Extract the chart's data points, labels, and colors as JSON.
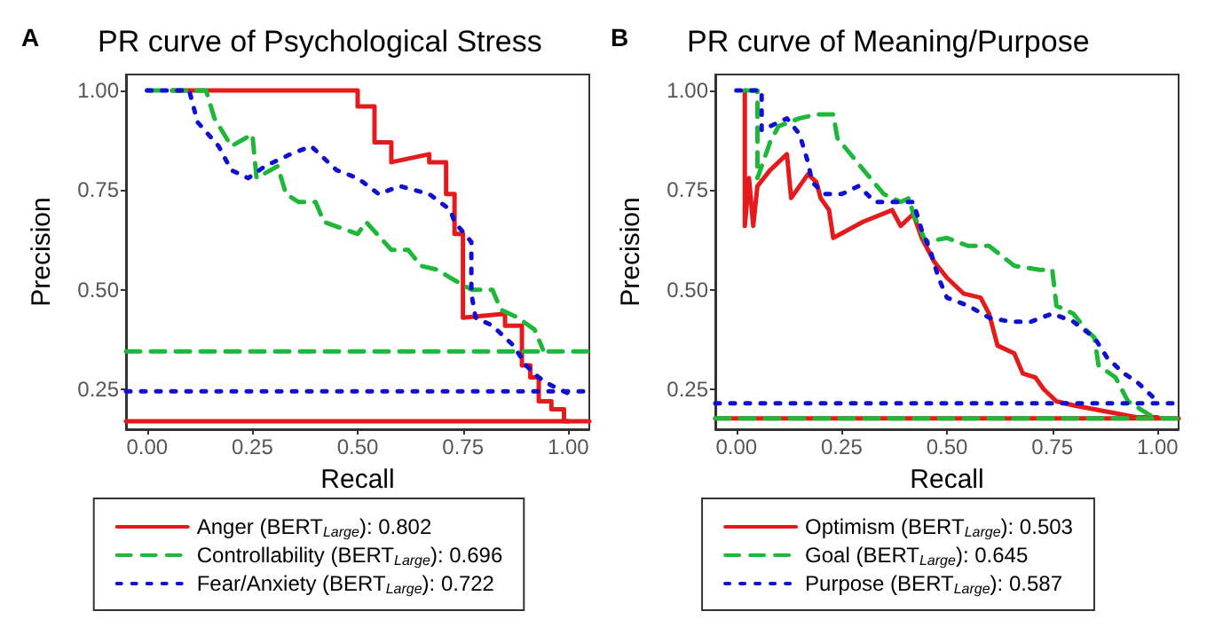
{
  "chart_data": [
    {
      "type": "line",
      "title": "PR curve of Psychological Stress",
      "xlabel": "Recall",
      "ylabel": "Precision",
      "annotations": [
        "A"
      ],
      "xlim": [
        -0.05,
        1.05
      ],
      "ylim": [
        0.15,
        1.04
      ],
      "xticks": [
        {
          "value": 0,
          "label": "0.00"
        },
        {
          "value": 0.25,
          "label": "0.25"
        },
        {
          "value": 0.5,
          "label": "0.50"
        },
        {
          "value": 0.75,
          "label": "0.75"
        },
        {
          "value": 1,
          "label": "1.00"
        }
      ],
      "yticks": [
        {
          "value": 0.25,
          "label": "0.25"
        },
        {
          "value": 0.5,
          "label": "0.50"
        },
        {
          "value": 0.75,
          "label": "0.75"
        },
        {
          "value": 1,
          "label": "1.00"
        }
      ],
      "grid": false,
      "legend": "bottom",
      "marker": "none",
      "series": [
        {
          "name": "Anger (BERT$_{Large}$): 0.802",
          "color": "#e41a1c",
          "line_style": "solid",
          "x": [
            0.06,
            0.5,
            0.5,
            0.54,
            0.54,
            0.58,
            0.58,
            0.67,
            0.67,
            0.71,
            0.71,
            0.73,
            0.73,
            0.75,
            0.75,
            0.85,
            0.85,
            0.89,
            0.89,
            0.91,
            0.91,
            0.93,
            0.93,
            0.96,
            0.96,
            0.99,
            0.99,
            1
          ],
          "values": [
            1,
            1,
            0.96,
            0.96,
            0.87,
            0.87,
            0.82,
            0.84,
            0.82,
            0.82,
            0.74,
            0.74,
            0.64,
            0.64,
            0.43,
            0.44,
            0.41,
            0.41,
            0.31,
            0.31,
            0.28,
            0.28,
            0.22,
            0.22,
            0.2,
            0.2,
            0.17,
            0.17
          ]
        },
        {
          "name": "Controllability (BERT$_{Large}$): 0.696",
          "color": "#1db83a",
          "line_style": "dashed",
          "x": [
            0,
            0.14,
            0.16,
            0.2,
            0.25,
            0.26,
            0.31,
            0.33,
            0.36,
            0.4,
            0.42,
            0.5,
            0.52,
            0.58,
            0.62,
            0.65,
            0.69,
            0.72,
            0.77,
            0.82,
            0.84,
            0.88,
            0.92,
            0.94
          ],
          "values": [
            1,
            1,
            0.93,
            0.86,
            0.89,
            0.78,
            0.81,
            0.74,
            0.72,
            0.72,
            0.67,
            0.64,
            0.67,
            0.6,
            0.6,
            0.56,
            0.55,
            0.53,
            0.5,
            0.5,
            0.45,
            0.43,
            0.4,
            0.35
          ]
        },
        {
          "name": "Fear/Anxiety (BERT$_{Large}$): 0.722",
          "color": "#1010d0",
          "line_style": "dotted",
          "x": [
            0,
            0.1,
            0.12,
            0.17,
            0.2,
            0.24,
            0.28,
            0.34,
            0.39,
            0.45,
            0.5,
            0.55,
            0.6,
            0.67,
            0.72,
            0.73,
            0.77,
            0.77,
            0.78,
            0.82,
            0.87,
            0.9,
            0.93,
            0.96,
            1
          ],
          "values": [
            1,
            1,
            0.92,
            0.86,
            0.8,
            0.78,
            0.81,
            0.84,
            0.86,
            0.8,
            0.78,
            0.74,
            0.76,
            0.74,
            0.7,
            0.67,
            0.62,
            0.49,
            0.43,
            0.41,
            0.36,
            0.31,
            0.28,
            0.26,
            0.24
          ]
        }
      ],
      "ref_lines": [
        {
          "axis": "y",
          "value": 0.17,
          "color": "#e41a1c",
          "line_style": "solid"
        },
        {
          "axis": "y",
          "value": 0.345,
          "color": "#1db83a",
          "line_style": "dashed"
        },
        {
          "axis": "y",
          "value": 0.245,
          "color": "#1010d0",
          "line_style": "dotted"
        }
      ]
    },
    {
      "type": "line",
      "title": "PR curve of Meaning/Purpose",
      "xlabel": "Recall",
      "ylabel": "Precision",
      "annotations": [
        "B"
      ],
      "xlim": [
        -0.05,
        1.05
      ],
      "ylim": [
        0.15,
        1.04
      ],
      "xticks": [
        {
          "value": 0,
          "label": "0.00"
        },
        {
          "value": 0.25,
          "label": "0.25"
        },
        {
          "value": 0.5,
          "label": "0.50"
        },
        {
          "value": 0.75,
          "label": "0.75"
        },
        {
          "value": 1,
          "label": "1.00"
        }
      ],
      "yticks": [
        {
          "value": 0.25,
          "label": "0.25"
        },
        {
          "value": 0.5,
          "label": "0.50"
        },
        {
          "value": 0.75,
          "label": "0.75"
        },
        {
          "value": 1,
          "label": "1.00"
        }
      ],
      "grid": false,
      "legend": "bottom",
      "marker": "none",
      "series": [
        {
          "name": "Optimism (BERT$_{Large}$): 0.503",
          "color": "#e41a1c",
          "line_style": "solid",
          "x": [
            0.02,
            0.02,
            0.03,
            0.04,
            0.05,
            0.08,
            0.12,
            0.13,
            0.17,
            0.19,
            0.2,
            0.22,
            0.23,
            0.3,
            0.37,
            0.39,
            0.42,
            0.44,
            0.47,
            0.5,
            0.54,
            0.58,
            0.6,
            0.62,
            0.66,
            0.68,
            0.71,
            0.73,
            0.76,
            0.8,
            0.85,
            0.9,
            0.95,
            1
          ],
          "values": [
            1,
            0.66,
            0.78,
            0.66,
            0.76,
            0.8,
            0.84,
            0.73,
            0.79,
            0.77,
            0.73,
            0.7,
            0.63,
            0.67,
            0.7,
            0.66,
            0.69,
            0.63,
            0.57,
            0.53,
            0.49,
            0.48,
            0.44,
            0.36,
            0.34,
            0.29,
            0.28,
            0.25,
            0.22,
            0.21,
            0.2,
            0.19,
            0.18,
            0.18
          ]
        },
        {
          "name": "Goal (BERT$_{Large}$): 0.645",
          "color": "#1db83a",
          "line_style": "dashed",
          "x": [
            0.02,
            0.05,
            0.05,
            0.08,
            0.1,
            0.15,
            0.19,
            0.23,
            0.24,
            0.31,
            0.35,
            0.39,
            0.41,
            0.42,
            0.45,
            0.5,
            0.55,
            0.6,
            0.66,
            0.72,
            0.75,
            0.76,
            0.8,
            0.83,
            0.85,
            0.86,
            0.9,
            0.93,
            0.96,
            0.99
          ],
          "values": [
            1,
            1,
            0.78,
            0.87,
            0.91,
            0.93,
            0.94,
            0.94,
            0.88,
            0.79,
            0.74,
            0.72,
            0.73,
            0.69,
            0.62,
            0.63,
            0.61,
            0.61,
            0.56,
            0.55,
            0.55,
            0.46,
            0.44,
            0.4,
            0.38,
            0.31,
            0.28,
            0.22,
            0.2,
            0.18
          ]
        },
        {
          "name": "Purpose (BERT$_{Large}$): 0.587",
          "color": "#1010d0",
          "line_style": "dotted",
          "x": [
            0,
            0.06,
            0.06,
            0.12,
            0.15,
            0.17,
            0.18,
            0.21,
            0.25,
            0.29,
            0.33,
            0.38,
            0.42,
            0.44,
            0.46,
            0.48,
            0.5,
            0.55,
            0.6,
            0.65,
            0.7,
            0.75,
            0.8,
            0.85,
            0.88,
            0.92,
            0.95,
            1
          ],
          "values": [
            1,
            1,
            0.9,
            0.93,
            0.89,
            0.82,
            0.77,
            0.74,
            0.74,
            0.76,
            0.72,
            0.72,
            0.72,
            0.65,
            0.6,
            0.53,
            0.48,
            0.46,
            0.43,
            0.42,
            0.42,
            0.44,
            0.42,
            0.38,
            0.33,
            0.29,
            0.27,
            0.22
          ]
        }
      ],
      "ref_lines": [
        {
          "axis": "y",
          "value": 0.215,
          "color": "#1010d0",
          "line_style": "dotted"
        },
        {
          "axis": "y",
          "value": 0.177,
          "color": "#e41a1c",
          "line_style": "solid"
        },
        {
          "axis": "y",
          "value": 0.177,
          "color": "#1db83a",
          "line_style": "dashed"
        }
      ]
    }
  ]
}
